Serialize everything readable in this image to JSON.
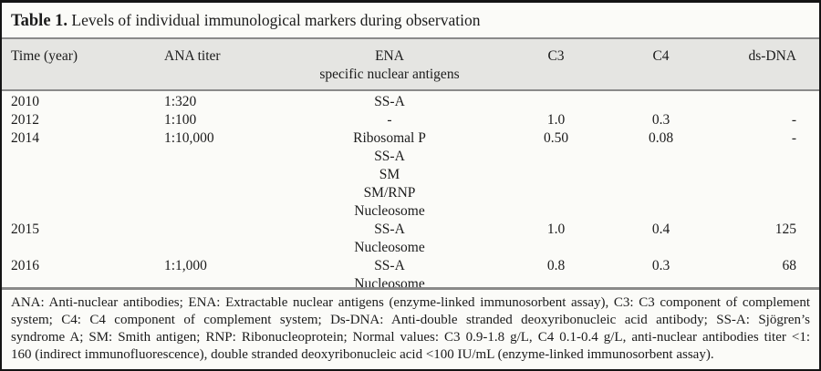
{
  "title": {
    "label": "Table 1.",
    "text": "Levels of individual immunological markers during observation"
  },
  "table": {
    "columns": [
      {
        "key": "time",
        "label": "Time (year)"
      },
      {
        "key": "ana",
        "label": "ANA titer"
      },
      {
        "key": "ena",
        "label": "ENA",
        "sublabel": "specific nuclear antigens"
      },
      {
        "key": "c3",
        "label": "C3"
      },
      {
        "key": "c4",
        "label": "C4"
      },
      {
        "key": "dsdna",
        "label": "ds-DNA"
      }
    ],
    "rows": [
      {
        "time": "2010",
        "ana": "1:320",
        "ena": [
          "SS-A"
        ],
        "c3": "",
        "c4": "",
        "dsdna": ""
      },
      {
        "time": "2012",
        "ana": "1:100",
        "ena": [
          "-"
        ],
        "c3": "1.0",
        "c4": "0.3",
        "dsdna": "-"
      },
      {
        "time": "2014",
        "ana": "1:10,000",
        "ena": [
          "Ribosomal P",
          "SS-A",
          "SM",
          "SM/RNP",
          "Nucleosome"
        ],
        "c3": "0.50",
        "c4": "0.08",
        "dsdna": "-"
      },
      {
        "time": "2015",
        "ana": "",
        "ena": [
          "SS-A",
          "Nucleosome"
        ],
        "c3": "1.0",
        "c4": "0.4",
        "dsdna": "125"
      },
      {
        "time": "2016",
        "ana": "1:1,000",
        "ena": [
          "SS-A",
          "Nucleosome"
        ],
        "c3": "0.8",
        "c4": "0.3",
        "dsdna": "68"
      }
    ]
  },
  "footnote_lines": [
    "ANA: Anti-nuclear antibodies; ENA: Extractable nuclear antigens (enzyme-linked immunosorbent assay), C3: C3 component of complement",
    "system; C4: C4 component of complement system; Ds-DNA: Anti-double stranded deoxyribonucleic acid antibody; SS-A: Sjögren’s",
    "syndrome A; SM: Smith antigen; RNP: Ribonucleoprotein; Normal values: C3 0.9-1.8 g/L, C4 0.1-0.4 g/L, anti-nuclear antibodies titer <1:",
    "160 (indirect immunofluorescence), double stranded deoxyribonucleic acid <100 IU/mL (enzyme-linked immunosorbent assay)."
  ],
  "colors": {
    "border": "#141414",
    "rule": "#8a8a8a",
    "header_bg": "#e5e5e2",
    "card_bg": "#fbfbf8",
    "text": "#1b1b1b"
  }
}
